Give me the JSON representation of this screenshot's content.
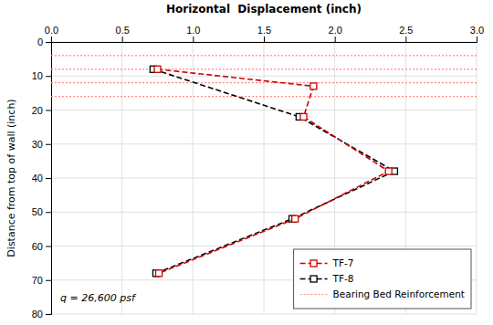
{
  "chart_data": {
    "type": "line",
    "title": "Horizontal  Displacement (inch)",
    "y_label": "Distance from top of wall (inch)",
    "annotation": "q = 26,600 psf",
    "xlim": [
      0,
      3
    ],
    "xticks": [
      {
        "value": 0,
        "label": "0.0"
      },
      {
        "value": 0.5,
        "label": "0.5"
      },
      {
        "value": 1,
        "label": "1.0"
      },
      {
        "value": 1.5,
        "label": "1.5"
      },
      {
        "value": 2,
        "label": "2.0"
      },
      {
        "value": 2.5,
        "label": "2.5"
      },
      {
        "value": 3,
        "label": "3.0"
      }
    ],
    "ylim": [
      80,
      0
    ],
    "yticks": [
      0,
      10,
      20,
      30,
      40,
      50,
      60,
      70,
      80
    ],
    "grid": true,
    "legend": "lower right",
    "series": [
      {
        "name": "TF-7",
        "color": "#cc0000",
        "line_style": "dashed",
        "marker": "square",
        "x": [
          0.75,
          1.85,
          1.78,
          2.38,
          1.72,
          0.76
        ],
        "values": [
          8,
          13,
          22,
          38,
          52,
          68
        ]
      },
      {
        "name": "TF-8",
        "color": "#000000",
        "line_style": "dashed",
        "marker": "square",
        "x": [
          0.72,
          1.75,
          2.42,
          1.7,
          0.74
        ],
        "values": [
          8,
          22,
          38,
          52,
          68
        ]
      },
      {
        "name": "Bearing Bed Reinforcement",
        "type": "hline",
        "color": "#ff8888",
        "line_style": "dotted",
        "values": [
          4,
          8,
          12,
          16
        ]
      }
    ]
  }
}
